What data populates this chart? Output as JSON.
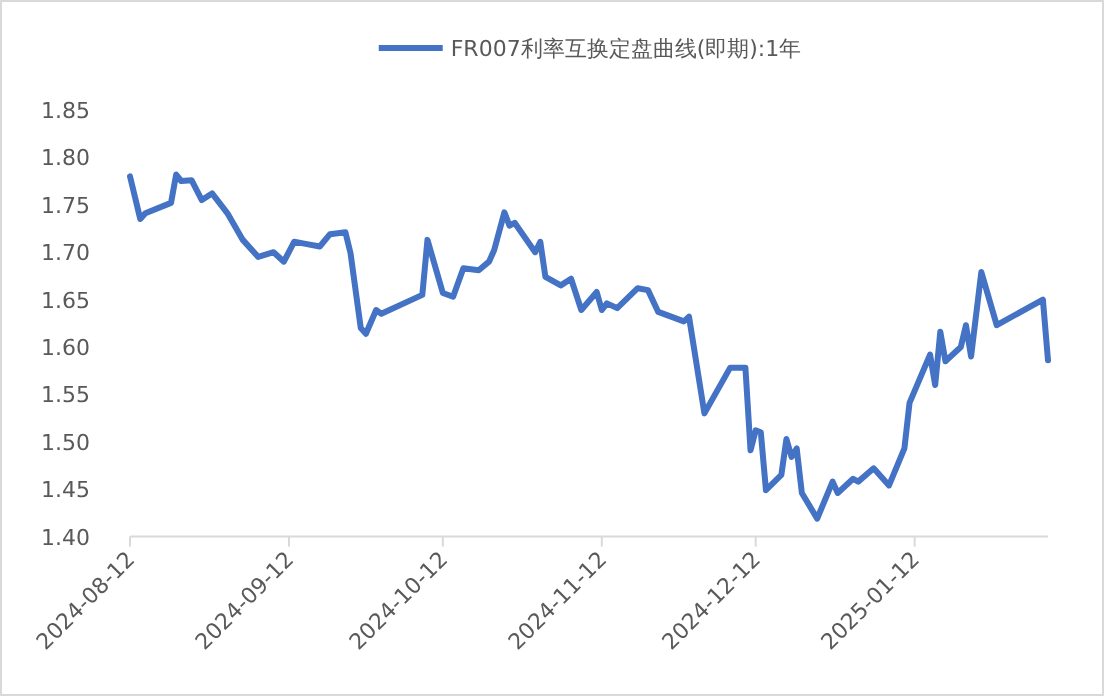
{
  "chart_data": {
    "type": "line",
    "legend": "top",
    "marker": "none",
    "line_style": "solid",
    "ylim": [
      1.4,
      1.85
    ],
    "yticks": [
      {
        "value": 1.4,
        "label": "1.40"
      },
      1.45,
      {
        "value": 1.5,
        "label": "1.50"
      },
      1.55,
      {
        "value": 1.6,
        "label": "1.60"
      },
      1.65,
      {
        "value": 1.7,
        "label": "1.70"
      },
      1.75,
      {
        "value": 1.8,
        "label": "1.80"
      },
      1.85
    ],
    "xlim": [
      "2024-08-12",
      "2025-02-07"
    ],
    "xticks": [
      "2024-08-12",
      "2024-09-12",
      "2024-10-12",
      "2024-11-12",
      "2024-12-12",
      "2025-01-12"
    ],
    "series": [
      {
        "name": "FR007利率互换定盘曲线(即期):1年",
        "color": "#4472c4",
        "x": [
          "2024-08-12",
          "2024-08-14",
          "2024-08-15",
          "2024-08-20",
          "2024-08-21",
          "2024-08-22",
          "2024-08-24",
          "2024-08-26",
          "2024-08-28",
          "2024-08-30",
          "2024-08-31",
          "2024-09-03",
          "2024-09-06",
          "2024-09-09",
          "2024-09-11",
          "2024-09-13",
          "2024-09-15",
          "2024-09-18",
          "2024-09-20",
          "2024-09-23",
          "2024-09-24",
          "2024-09-26",
          "2024-09-27",
          "2024-09-29",
          "2024-09-30",
          "2024-10-08",
          "2024-10-09",
          "2024-10-12",
          "2024-10-14",
          "2024-10-16",
          "2024-10-19",
          "2024-10-21",
          "2024-10-22",
          "2024-10-24",
          "2024-10-25",
          "2024-10-26",
          "2024-10-30",
          "2024-10-31",
          "2024-11-01",
          "2024-11-04",
          "2024-11-06",
          "2024-11-08",
          "2024-11-11",
          "2024-11-12",
          "2024-11-13",
          "2024-11-15",
          "2024-11-19",
          "2024-11-21",
          "2024-11-23",
          "2024-11-28",
          "2024-11-29",
          "2024-12-02",
          "2024-12-07",
          "2024-12-10",
          "2024-12-11",
          "2024-12-12",
          "2024-12-13",
          "2024-12-14",
          "2024-12-17",
          "2024-12-18",
          "2024-12-19",
          "2024-12-20",
          "2024-12-21",
          "2024-12-24",
          "2024-12-27",
          "2024-12-28",
          "2024-12-31",
          "2025-01-01",
          "2025-01-04",
          "2025-01-07",
          "2025-01-10",
          "2025-01-11",
          "2025-01-15",
          "2025-01-16",
          "2025-01-17",
          "2025-01-18",
          "2025-01-21",
          "2025-01-22",
          "2025-01-23",
          "2025-01-25",
          "2025-01-28",
          "2025-02-06",
          "2025-02-07"
        ],
        "values": [
          1.78,
          1.735,
          1.741,
          1.752,
          1.782,
          1.775,
          1.776,
          1.755,
          1.762,
          1.748,
          1.741,
          1.713,
          1.695,
          1.7,
          1.69,
          1.711,
          1.709,
          1.706,
          1.719,
          1.721,
          1.699,
          1.62,
          1.614,
          1.639,
          1.635,
          1.655,
          1.713,
          1.657,
          1.653,
          1.683,
          1.681,
          1.69,
          1.702,
          1.742,
          1.728,
          1.731,
          1.7,
          1.711,
          1.674,
          1.665,
          1.672,
          1.639,
          1.658,
          1.639,
          1.646,
          1.641,
          1.662,
          1.66,
          1.637,
          1.627,
          1.632,
          1.53,
          1.578,
          1.578,
          1.491,
          1.512,
          1.51,
          1.449,
          1.465,
          1.503,
          1.484,
          1.493,
          1.446,
          1.419,
          1.458,
          1.446,
          1.461,
          1.458,
          1.472,
          1.454,
          1.493,
          1.541,
          1.592,
          1.56,
          1.616,
          1.585,
          1.6,
          1.623,
          1.59,
          1.679,
          1.623,
          1.65,
          1.586
        ]
      }
    ]
  }
}
